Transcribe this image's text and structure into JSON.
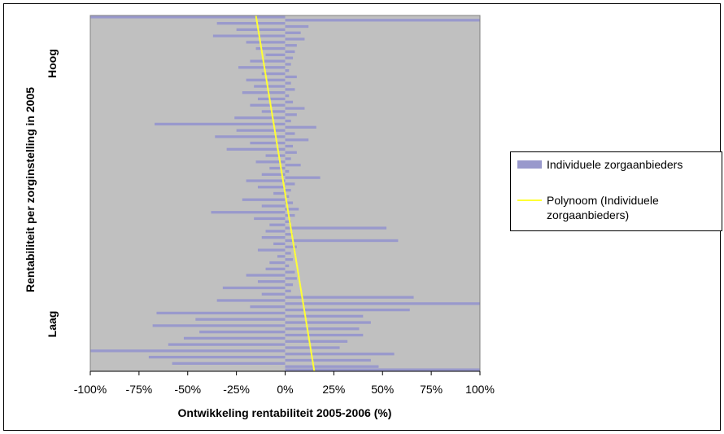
{
  "chart_data": {
    "type": "bar",
    "orientation": "horizontal",
    "xlabel": "Ontwikkeling rentabiliteit 2005-2006 (%)",
    "ylabel": "Rentabiliteit per zorginstelling in 2005",
    "y_top_label": "Hoog",
    "y_bottom_label": "Laag",
    "xlim": [
      -100,
      100
    ],
    "x_ticks": [
      -100,
      -75,
      -50,
      -25,
      0,
      25,
      50,
      75,
      100
    ],
    "x_tick_labels": [
      "-100%",
      "-75%",
      "-50%",
      "-25%",
      "0%",
      "25%",
      "50%",
      "75%",
      "100%"
    ],
    "grid": false,
    "legend_position": "right",
    "colors": {
      "plot_background": "#c0c0c0",
      "bars": "#9999cc",
      "trend": "#ffff33"
    },
    "series": [
      {
        "name": "Individuele zorgaanbieders",
        "kind": "bar",
        "values": [
          -100,
          100,
          -35,
          12,
          -25,
          8,
          -37,
          10,
          -20,
          6,
          -15,
          5,
          -10,
          4,
          -18,
          3,
          -24,
          2,
          -12,
          6,
          -20,
          3,
          -16,
          5,
          -22,
          2,
          -14,
          4,
          -18,
          10,
          -12,
          6,
          -26,
          3,
          -67,
          16,
          -25,
          5,
          -36,
          12,
          -18,
          4,
          -30,
          6,
          -10,
          3,
          -15,
          8,
          -8,
          2,
          -12,
          18,
          -20,
          5,
          -14,
          3,
          -6,
          2,
          -22,
          4,
          -12,
          7,
          -38,
          5,
          -16,
          3,
          -8,
          52,
          -10,
          4,
          -12,
          58,
          -6,
          6,
          -14,
          3,
          -4,
          4,
          -8,
          2,
          -10,
          5,
          -20,
          6,
          -14,
          4,
          -32,
          3,
          -12,
          66,
          -35,
          100,
          -18,
          64,
          -66,
          40,
          -46,
          44,
          -68,
          38,
          -44,
          40,
          -52,
          32,
          -60,
          28,
          -100,
          56,
          -70,
          44,
          -58,
          48,
          100
        ]
      },
      {
        "name": "Polynoom (Individuele zorgaanbieders)",
        "kind": "trendline",
        "x": [
          -15,
          15
        ]
      }
    ]
  },
  "legend": {
    "bars_label": "Individuele zorgaanbieders",
    "trend_label_line1": "Polynoom (Individuele",
    "trend_label_line2": "zorgaanbieders)"
  }
}
